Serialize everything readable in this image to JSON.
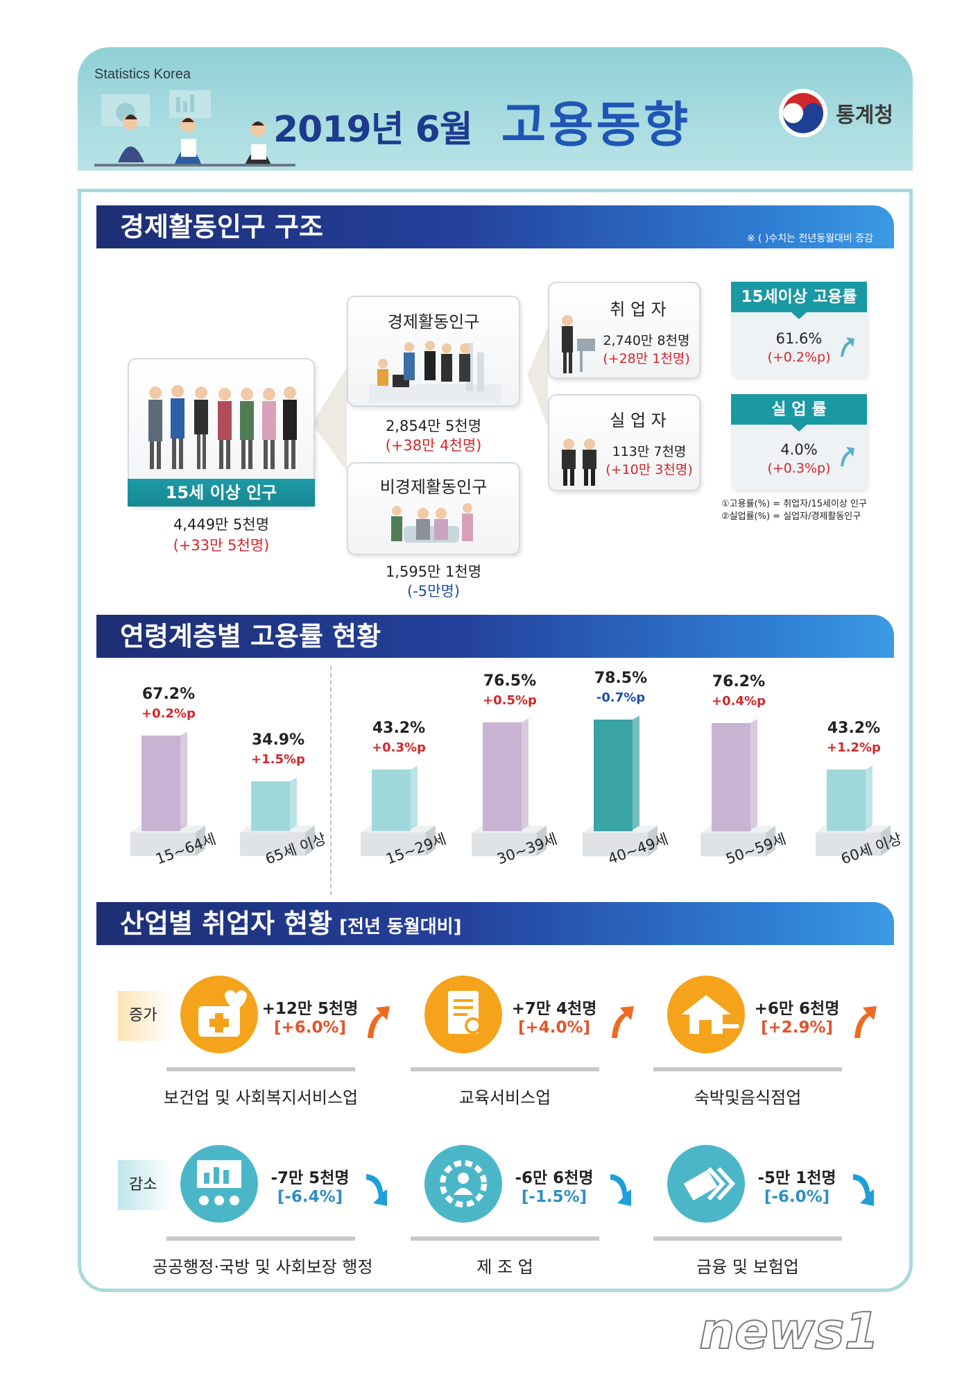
{
  "header": {
    "brand": "Statistics Korea",
    "title_date": "2019년 6월",
    "title_main": "고용동향",
    "logo_text": "통계청"
  },
  "structure": {
    "heading": "경제활동인구 구조",
    "note": "※ (  )수치는 전년동월대비 증감",
    "pop15": {
      "label": "15세 이상 인구",
      "value": "4,449만 5천명",
      "change": "(+33만 5천명)"
    },
    "active": {
      "label": "경제활동인구",
      "value": "2,854만 5천명",
      "change": "(+38만 4천명)"
    },
    "inactive": {
      "label": "비경제활동인구",
      "value": "1,595만 1천명",
      "change": "(-5만명)"
    },
    "employed": {
      "label": "취 업 자",
      "value": "2,740만 8천명",
      "change": "(+28만 1천명)"
    },
    "unemployed": {
      "label": "실 업 자",
      "value": "113만 7천명",
      "change": "(+10만 3천명)"
    },
    "emp_rate": {
      "label": "15세이상 고용률",
      "value": "61.6%",
      "change": "(+0.2%p)"
    },
    "unemp_rate": {
      "label": "실 업 률",
      "value": "4.0%",
      "change": "(+0.3%p)"
    },
    "footnote1": "①고용률(%) = 취업자/15세이상 인구",
    "footnote2": "②실업률(%) = 실업자/경제활동인구"
  },
  "age": {
    "heading": "연령계층별 고용률 현황",
    "bars": [
      {
        "age": "15~64세",
        "rate": 67.2,
        "rate_label": "67.2%",
        "change": "+0.2%p",
        "dir": "up",
        "color": "purple"
      },
      {
        "age": "65세 이상",
        "rate": 34.9,
        "rate_label": "34.9%",
        "change": "+1.5%p",
        "dir": "up",
        "color": "teal"
      },
      {
        "age": "15~29세",
        "rate": 43.2,
        "rate_label": "43.2%",
        "change": "+0.3%p",
        "dir": "up",
        "color": "teal"
      },
      {
        "age": "30~39세",
        "rate": 76.5,
        "rate_label": "76.5%",
        "change": "+0.5%p",
        "dir": "up",
        "color": "purple"
      },
      {
        "age": "40~49세",
        "rate": 78.5,
        "rate_label": "78.5%",
        "change": "-0.7%p",
        "dir": "down",
        "color": "darkteal"
      },
      {
        "age": "50~59세",
        "rate": 76.2,
        "rate_label": "76.2%",
        "change": "+0.4%p",
        "dir": "up",
        "color": "purple"
      },
      {
        "age": "60세 이상",
        "rate": 43.2,
        "rate_label": "43.2%",
        "change": "+1.2%p",
        "dir": "up",
        "color": "teal"
      }
    ],
    "colors": {
      "purple": "#c9b3d3",
      "teal": "#9ed8db",
      "darkteal": "#3aa3a3",
      "red": "#d2272b",
      "blue": "#1f4fa8"
    }
  },
  "industry": {
    "heading": "산업별 취업자 현황",
    "heading_sub": "[전년 동월대비]",
    "increase_label": "증가",
    "decrease_label": "감소",
    "increase": [
      {
        "name": "보건업 및 사회복지서비스업",
        "value": "+12만 5천명",
        "pct": "[+6.0%]",
        "icon": "medical-kit-icon"
      },
      {
        "name": "교육서비스업",
        "value": "+7만 4천명",
        "pct": "[+4.0%]",
        "icon": "document-search-icon"
      },
      {
        "name": "숙박및음식점업",
        "value": "+6만 6천명",
        "pct": "[+2.9%]",
        "icon": "house-food-icon"
      }
    ],
    "decrease": [
      {
        "name": "공공행정·국방 및 사회보장 행정",
        "value": "-7만 5천명",
        "pct": "[-6.4%]",
        "icon": "presentation-board-icon"
      },
      {
        "name": "제 조 업",
        "value": "-6만 6천명",
        "pct": "[-1.5%]",
        "icon": "gear-person-icon"
      },
      {
        "name": "금융 및 보험업",
        "value": "-5만 1천명",
        "pct": "[-6.0%]",
        "icon": "money-notes-icon"
      }
    ],
    "colors": {
      "increase_icon": "#f5a31a",
      "decrease_icon": "#4cb6c9",
      "up_arrow": "#ef6a1f",
      "down_arrow": "#1f9fd8"
    }
  },
  "watermark": "news1"
}
